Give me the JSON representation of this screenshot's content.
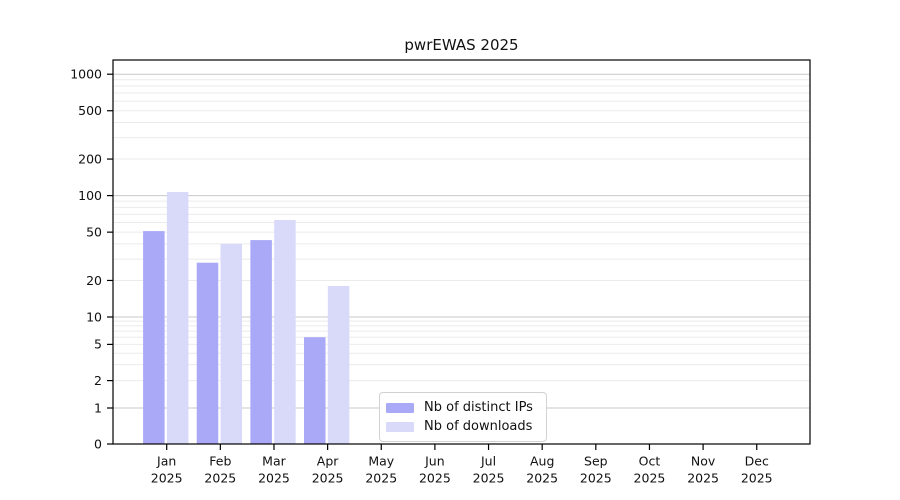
{
  "figure": {
    "title": "pwrEWAS 2025"
  },
  "chart_data": {
    "type": "bar",
    "title": "pwrEWAS 2025",
    "categories": [
      "Jan 2025",
      "Feb 2025",
      "Mar 2025",
      "Apr 2025",
      "May 2025",
      "Jun 2025",
      "Jul 2025",
      "Aug 2025",
      "Sep 2025",
      "Oct 2025",
      "Nov 2025",
      "Dec 2025"
    ],
    "series": [
      {
        "name": "Nb of distinct IPs",
        "color": "#a9a9f7",
        "values": [
          51,
          28,
          43,
          6,
          0,
          0,
          0,
          0,
          0,
          0,
          0,
          0
        ]
      },
      {
        "name": "Nb of downloads",
        "color": "#d9d9fa",
        "values": [
          107,
          40,
          63,
          18,
          0,
          0,
          0,
          0,
          0,
          0,
          0,
          0
        ]
      }
    ],
    "yticks": [
      0,
      1,
      2,
      5,
      10,
      20,
      50,
      100,
      200,
      500,
      1000
    ],
    "xlabel": "",
    "ylabel": "",
    "yscale": "symlog",
    "ylim": [
      0,
      1300
    ],
    "grid": true,
    "legend_position": "inside-bottom-center",
    "colors": {
      "major_grid": "#c8c8c8",
      "minor_grid": "#ebebeb",
      "axis": "#000000",
      "text": "#111111",
      "background": "#ffffff"
    }
  }
}
